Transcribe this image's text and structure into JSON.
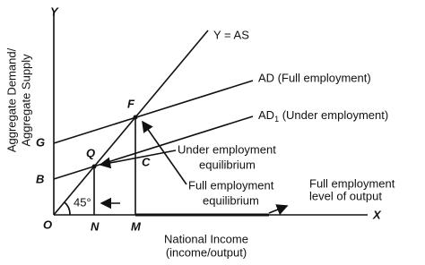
{
  "axes": {
    "y_symbol": "Y",
    "x_symbol": "X",
    "origin": "O",
    "y_label": [
      "Aggregate Demand/",
      "Aggregate Supply"
    ],
    "x_label": [
      "National Income",
      "(income/output)"
    ]
  },
  "curves": {
    "as": "Y = AS",
    "ad": "AD (Full employment)",
    "ad1_main": "AD",
    "ad1_sub": "1",
    "ad1_rest": " (Under employment)"
  },
  "points": {
    "f": "F",
    "q": "Q",
    "c": "C",
    "g": "G",
    "b": "B",
    "n": "N",
    "m": "M"
  },
  "angle": "45°",
  "annotations": {
    "under": [
      "Under employment",
      "equilibrium"
    ],
    "full": [
      "Full employment",
      "equilibrium"
    ],
    "level": [
      "Full employment",
      "level of output"
    ]
  }
}
